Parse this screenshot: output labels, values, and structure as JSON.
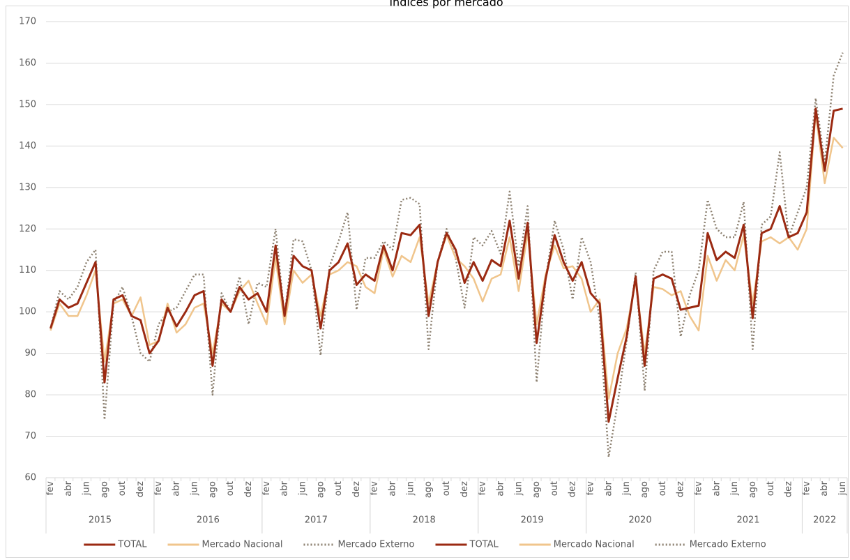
{
  "chart_data": {
    "type": "line",
    "title": "Índices por mercado",
    "categories": [
      "fev",
      null,
      "abr",
      null,
      "jun",
      null,
      "ago",
      null,
      "out",
      null,
      "dez",
      null,
      "fev",
      null,
      "abr",
      null,
      "jun",
      null,
      "ago",
      null,
      "out",
      null,
      "dez",
      null,
      "fev",
      null,
      "abr",
      null,
      "jun",
      null,
      "ago",
      null,
      "out",
      null,
      "dez",
      null,
      "fev",
      null,
      "abr",
      null,
      "jun",
      null,
      "ago",
      null,
      "out",
      null,
      "dez",
      null,
      "fev",
      null,
      "abr",
      null,
      "jun",
      null,
      "ago",
      null,
      "out",
      null,
      "dez",
      null,
      "fev",
      null,
      "abr",
      null,
      "jun",
      null,
      "ago",
      null,
      "out",
      null,
      "dez",
      null,
      "fev",
      null,
      "abr",
      null,
      "jun",
      null,
      "ago",
      null,
      "out",
      null,
      "dez",
      null,
      "fev",
      null,
      "abr",
      null,
      "jun"
    ],
    "x_groups": [
      {
        "label": "2015",
        "size": 12
      },
      {
        "label": "2016",
        "size": 12
      },
      {
        "label": "2017",
        "size": 12
      },
      {
        "label": "2018",
        "size": 12
      },
      {
        "label": "2019",
        "size": 12
      },
      {
        "label": "2020",
        "size": 12
      },
      {
        "label": "2021",
        "size": 12
      },
      {
        "label": "2022",
        "size": 5
      }
    ],
    "series": [
      {
        "name": "TOTAL",
        "color": "#9b2a12",
        "dash": "solid",
        "values": [
          96,
          103,
          101,
          102,
          107,
          112,
          83,
          103,
          104,
          99,
          98,
          90,
          93,
          101,
          96.5,
          100,
          104,
          105,
          87,
          103,
          100,
          106,
          103,
          104.5,
          100,
          116,
          99,
          113.5,
          111,
          110,
          96,
          110,
          112,
          116.5,
          106.5,
          109,
          107.5,
          116,
          110,
          119,
          118.5,
          121,
          99,
          112,
          119,
          115,
          107,
          112,
          107.5,
          112.5,
          111,
          122,
          108,
          121.5,
          92.5,
          108,
          118.5,
          112,
          107.5,
          112,
          104.5,
          102,
          73.5,
          84,
          94,
          108.5,
          87,
          108,
          109,
          108,
          100.5,
          101,
          101.5,
          119,
          112.5,
          114.5,
          113,
          121,
          98.5,
          119,
          120,
          125.5,
          118,
          119,
          124,
          149,
          134,
          148.5,
          149
        ]
      },
      {
        "name": "Mercado Nacional",
        "color": "#f0c58c",
        "dash": "solid",
        "values": [
          95.5,
          102,
          99,
          99,
          104,
          110,
          88,
          102,
          103,
          99,
          103.5,
          92,
          93,
          102,
          95,
          97,
          101,
          102,
          90,
          102,
          100,
          105,
          107.5,
          102,
          97,
          113,
          97,
          110,
          107,
          109,
          99,
          109,
          110,
          112,
          111,
          106,
          104.5,
          115,
          108.5,
          113.5,
          112,
          118,
          102,
          112,
          118.5,
          113,
          111,
          108,
          102.5,
          108,
          109,
          118,
          105,
          119,
          97,
          109,
          116,
          110.5,
          111,
          108,
          100,
          103,
          79,
          90,
          96,
          107.5,
          90,
          106,
          105.5,
          104,
          105,
          99,
          95.5,
          113.5,
          107.5,
          112.5,
          110,
          118.5,
          102,
          117,
          118,
          116.5,
          118,
          115,
          120,
          148,
          131,
          142,
          139.5
        ]
      },
      {
        "name": "Mercado Externo",
        "color": "#8c8070",
        "dash": "dotted",
        "values": [
          96,
          105,
          103,
          106,
          112,
          115,
          74,
          102,
          106,
          99,
          90,
          88,
          97,
          100,
          101,
          105,
          109,
          109,
          80,
          104.5,
          100,
          108.5,
          97,
          107,
          106,
          120,
          99,
          117.5,
          117,
          110,
          89.5,
          111,
          117,
          124,
          100.5,
          113,
          113,
          117,
          115,
          127,
          127.5,
          126,
          91,
          112,
          120,
          113,
          101,
          118,
          116,
          119.5,
          114,
          129,
          111,
          125.5,
          83,
          108,
          122,
          115,
          103,
          118,
          112,
          98,
          65,
          78,
          93,
          109.5,
          81,
          110,
          114.5,
          114.5,
          94,
          104,
          110,
          127,
          120,
          118,
          118,
          126.5,
          91,
          121,
          123,
          138.5,
          118,
          124,
          130,
          151.5,
          136,
          157,
          162.5
        ]
      }
    ],
    "legend": [
      {
        "name": "TOTAL",
        "color": "#9b2a12",
        "dash": "solid"
      },
      {
        "name": "Mercado Nacional",
        "color": "#f0c58c",
        "dash": "solid"
      },
      {
        "name": "Mercado Externo",
        "color": "#8c8070",
        "dash": "dotted"
      },
      {
        "name": "TOTAL",
        "color": "#9b2a12",
        "dash": "solid"
      },
      {
        "name": "Mercado Nacional",
        "color": "#f0c58c",
        "dash": "solid"
      },
      {
        "name": "Mercado Externo",
        "color": "#8c8070",
        "dash": "dotted"
      }
    ],
    "legend_position": "bottom",
    "ylim": [
      60,
      170
    ],
    "yticks": [
      60,
      70,
      80,
      90,
      100,
      110,
      120,
      130,
      140,
      150,
      160,
      170
    ],
    "grid": true
  }
}
